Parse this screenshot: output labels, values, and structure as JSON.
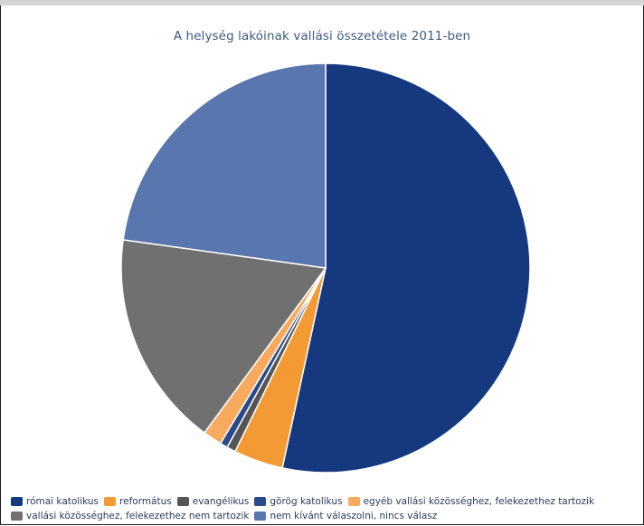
{
  "chart_data": {
    "type": "pie",
    "title": "A helység lakóinak vallási összetétele 2011-ben",
    "categories": [
      "római katolikus",
      "református",
      "evangélikus",
      "görög katolikus",
      "egyéb vallási közösséghez, felekezethez tartozik",
      "vallási közösséghez, felekezethez nem tartozik",
      "nem kívánt válaszolni, nincs válasz"
    ],
    "values": [
      53.4,
      3.9,
      0.7,
      0.6,
      1.5,
      17.1,
      22.8
    ],
    "colors": [
      "#15387e",
      "#f49a35",
      "#555555",
      "#2b4a8c",
      "#f8ab5e",
      "#707070",
      "#5a76ae"
    ],
    "legend_position": "bottom"
  }
}
